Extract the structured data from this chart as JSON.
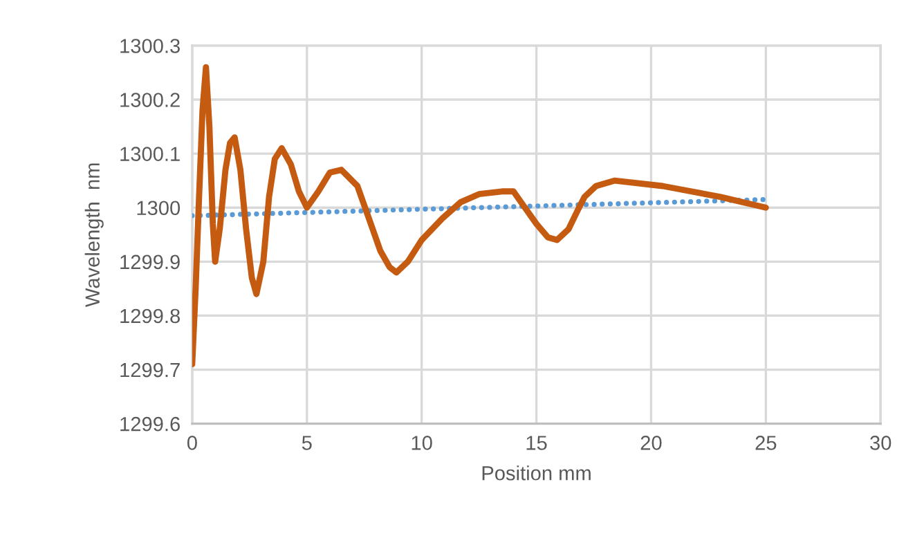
{
  "chart_data": {
    "type": "line",
    "xlabel": "Position mm",
    "ylabel": "Wavelength  nm",
    "xlim": [
      0,
      30
    ],
    "xticks": [
      0,
      5,
      10,
      15,
      20,
      25,
      30
    ],
    "ylim": [
      1299.6,
      1300.3
    ],
    "yticks": [
      {
        "value": 1299.6,
        "label": "1299.6"
      },
      {
        "value": 1299.7,
        "label": "1299.7"
      },
      {
        "value": 1299.8,
        "label": "1299.8"
      },
      {
        "value": 1299.9,
        "label": "1299.9"
      },
      {
        "value": 1300.0,
        "label": "1300"
      },
      {
        "value": 1300.1,
        "label": "1300.1"
      },
      {
        "value": 1300.2,
        "label": "1300.2"
      },
      {
        "value": 1300.3,
        "label": "1300.3"
      }
    ],
    "grid": true,
    "legend": false,
    "marker": "none",
    "series": [
      {
        "color": "#c55a11",
        "line_style": "solid",
        "x": [
          0,
          0.15,
          0.3,
          0.45,
          0.6,
          0.75,
          0.9,
          1.0,
          1.2,
          1.45,
          1.65,
          1.85,
          2.1,
          2.35,
          2.6,
          2.8,
          3.1,
          3.35,
          3.6,
          3.9,
          4.3,
          4.65,
          5.0,
          5.5,
          6.0,
          6.5,
          7.2,
          7.7,
          8.2,
          8.6,
          8.9,
          9.4,
          10.0,
          10.9,
          11.7,
          12.5,
          13.5,
          14.0,
          14.5,
          15.0,
          15.5,
          15.9,
          16.4,
          16.8,
          17.1,
          17.6,
          18.4,
          20.5,
          23.0,
          25.0
        ],
        "values": [
          1299.71,
          1299.85,
          1300.02,
          1300.18,
          1300.26,
          1300.15,
          1299.97,
          1299.9,
          1299.96,
          1300.07,
          1300.12,
          1300.13,
          1300.07,
          1299.96,
          1299.87,
          1299.84,
          1299.9,
          1300.02,
          1300.09,
          1300.11,
          1300.08,
          1300.03,
          1300.0,
          1300.03,
          1300.065,
          1300.07,
          1300.04,
          1299.98,
          1299.92,
          1299.89,
          1299.88,
          1299.9,
          1299.94,
          1299.98,
          1300.01,
          1300.025,
          1300.03,
          1300.03,
          1300.0,
          1299.97,
          1299.945,
          1299.94,
          1299.96,
          1299.995,
          1300.02,
          1300.04,
          1300.05,
          1300.04,
          1300.02,
          1300.0
        ]
      },
      {
        "color": "#5b9bd5",
        "line_style": "dotted",
        "x": [
          0,
          25
        ],
        "values": [
          1299.985,
          1300.015
        ]
      }
    ]
  }
}
